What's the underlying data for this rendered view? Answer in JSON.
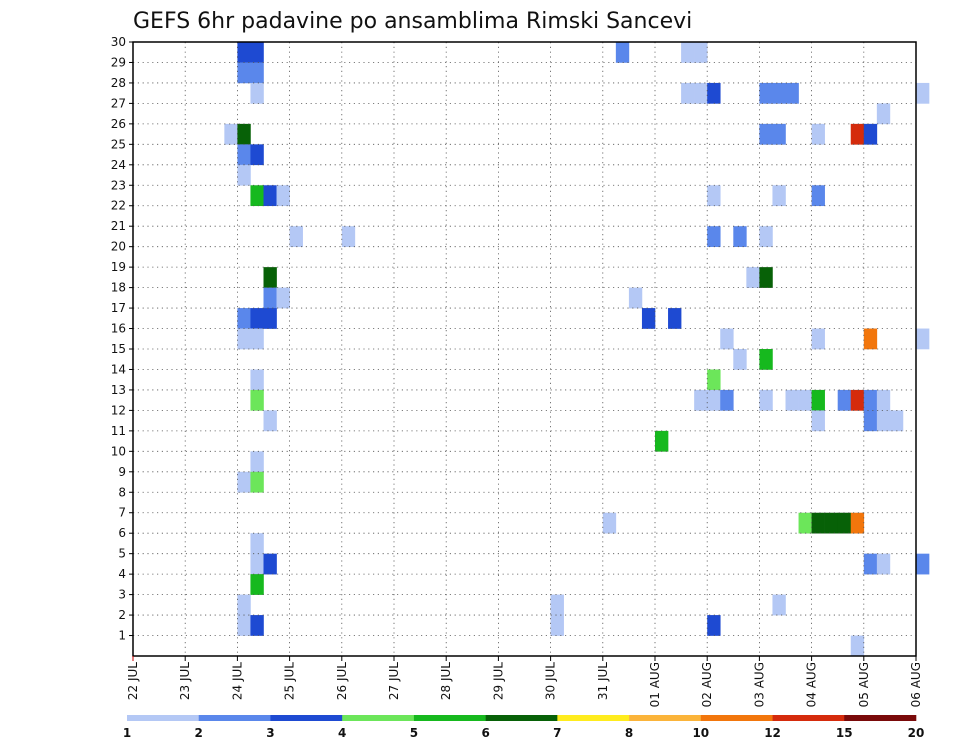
{
  "chart_data": {
    "type": "heatmap",
    "title": "GEFS 6hr padavine po ansamblima Rimski Sancevi",
    "xlabel": "",
    "ylabel": "",
    "x_ticks": [
      "22 JUL",
      "23 JUL",
      "24 JUL",
      "25 JUL",
      "26 JUL",
      "27 JUL",
      "28 JUL",
      "29 JUL",
      "30 JUL",
      "31 JUL",
      "01 AUG",
      "02 AUG",
      "03 AUG",
      "04 AUG",
      "05 AUG",
      "06 AUG"
    ],
    "y_ticks": [
      1,
      2,
      3,
      4,
      5,
      6,
      7,
      8,
      9,
      10,
      11,
      12,
      13,
      14,
      15,
      16,
      17,
      18,
      19,
      20,
      21,
      22,
      23,
      24,
      25,
      26,
      27,
      28,
      29,
      30
    ],
    "xlim_steps": [
      0,
      60
    ],
    "ylim": [
      0,
      30
    ],
    "grid": true,
    "step_hours": 6,
    "colorbar": {
      "levels": [
        1,
        2,
        3,
        4,
        5,
        6,
        7,
        8,
        10,
        12,
        15,
        20
      ],
      "labels": [
        "1",
        "2",
        "3",
        "4",
        "5",
        "6",
        "7",
        "8",
        "10",
        "12",
        "15",
        "20"
      ],
      "colors": [
        "#b4c8f5",
        "#5a87eb",
        "#1e4ad2",
        "#6ce65a",
        "#16b91e",
        "#076107",
        "#ffec1e",
        "#fbb43a",
        "#f2760c",
        "#d52b0c",
        "#7a0a0a"
      ]
    },
    "cells": [
      {
        "member": 30,
        "step": 8,
        "value": 3
      },
      {
        "member": 30,
        "step": 9,
        "value": 3
      },
      {
        "member": 30,
        "step": 37,
        "value": 2
      },
      {
        "member": 30,
        "step": 42,
        "value": 1
      },
      {
        "member": 30,
        "step": 43,
        "value": 1
      },
      {
        "member": 29,
        "step": 8,
        "value": 2
      },
      {
        "member": 29,
        "step": 9,
        "value": 2
      },
      {
        "member": 28,
        "step": 9,
        "value": 1
      },
      {
        "member": 28,
        "step": 42,
        "value": 1
      },
      {
        "member": 28,
        "step": 43,
        "value": 1
      },
      {
        "member": 28,
        "step": 44,
        "value": 3
      },
      {
        "member": 28,
        "step": 48,
        "value": 2
      },
      {
        "member": 28,
        "step": 49,
        "value": 2
      },
      {
        "member": 28,
        "step": 50,
        "value": 2
      },
      {
        "member": 28,
        "step": 60,
        "value": 1
      },
      {
        "member": 27,
        "step": 57,
        "value": 1
      },
      {
        "member": 26,
        "step": 7,
        "value": 1
      },
      {
        "member": 26,
        "step": 8,
        "value": 6
      },
      {
        "member": 26,
        "step": 48,
        "value": 2
      },
      {
        "member": 26,
        "step": 49,
        "value": 2
      },
      {
        "member": 26,
        "step": 52,
        "value": 1
      },
      {
        "member": 26,
        "step": 55,
        "value": 12
      },
      {
        "member": 26,
        "step": 56,
        "value": 3
      },
      {
        "member": 25,
        "step": 8,
        "value": 2
      },
      {
        "member": 25,
        "step": 9,
        "value": 3
      },
      {
        "member": 24,
        "step": 8,
        "value": 1
      },
      {
        "member": 23,
        "step": 9,
        "value": 5
      },
      {
        "member": 23,
        "step": 10,
        "value": 3
      },
      {
        "member": 23,
        "step": 11,
        "value": 1
      },
      {
        "member": 23,
        "step": 44,
        "value": 1
      },
      {
        "member": 23,
        "step": 49,
        "value": 1
      },
      {
        "member": 23,
        "step": 52,
        "value": 2
      },
      {
        "member": 21,
        "step": 12,
        "value": 1
      },
      {
        "member": 21,
        "step": 16,
        "value": 1
      },
      {
        "member": 21,
        "step": 44,
        "value": 2
      },
      {
        "member": 21,
        "step": 46,
        "value": 2
      },
      {
        "member": 21,
        "step": 48,
        "value": 1
      },
      {
        "member": 19,
        "step": 10,
        "value": 6
      },
      {
        "member": 19,
        "step": 47,
        "value": 1
      },
      {
        "member": 19,
        "step": 48,
        "value": 6
      },
      {
        "member": 18,
        "step": 10,
        "value": 2
      },
      {
        "member": 18,
        "step": 11,
        "value": 1
      },
      {
        "member": 18,
        "step": 38,
        "value": 1
      },
      {
        "member": 17,
        "step": 8,
        "value": 2
      },
      {
        "member": 17,
        "step": 9,
        "value": 3
      },
      {
        "member": 17,
        "step": 10,
        "value": 3
      },
      {
        "member": 17,
        "step": 39,
        "value": 3
      },
      {
        "member": 17,
        "step": 41,
        "value": 3
      },
      {
        "member": 16,
        "step": 8,
        "value": 1
      },
      {
        "member": 16,
        "step": 9,
        "value": 1
      },
      {
        "member": 16,
        "step": 45,
        "value": 1
      },
      {
        "member": 16,
        "step": 52,
        "value": 1
      },
      {
        "member": 16,
        "step": 56,
        "value": 10
      },
      {
        "member": 16,
        "step": 60,
        "value": 1
      },
      {
        "member": 15,
        "step": 46,
        "value": 1
      },
      {
        "member": 15,
        "step": 48,
        "value": 5
      },
      {
        "member": 14,
        "step": 9,
        "value": 1
      },
      {
        "member": 14,
        "step": 44,
        "value": 4
      },
      {
        "member": 13,
        "step": 9,
        "value": 4
      },
      {
        "member": 13,
        "step": 43,
        "value": 1
      },
      {
        "member": 13,
        "step": 44,
        "value": 1
      },
      {
        "member": 13,
        "step": 45,
        "value": 2
      },
      {
        "member": 13,
        "step": 48,
        "value": 1
      },
      {
        "member": 13,
        "step": 50,
        "value": 1
      },
      {
        "member": 13,
        "step": 51,
        "value": 1
      },
      {
        "member": 13,
        "step": 52,
        "value": 5
      },
      {
        "member": 13,
        "step": 54,
        "value": 2
      },
      {
        "member": 13,
        "step": 55,
        "value": 12
      },
      {
        "member": 13,
        "step": 56,
        "value": 2
      },
      {
        "member": 13,
        "step": 57,
        "value": 1
      },
      {
        "member": 12,
        "step": 10,
        "value": 1
      },
      {
        "member": 12,
        "step": 52,
        "value": 1
      },
      {
        "member": 12,
        "step": 56,
        "value": 2
      },
      {
        "member": 12,
        "step": 57,
        "value": 1
      },
      {
        "member": 12,
        "step": 58,
        "value": 1
      },
      {
        "member": 11,
        "step": 40,
        "value": 5
      },
      {
        "member": 10,
        "step": 9,
        "value": 1
      },
      {
        "member": 9,
        "step": 8,
        "value": 1
      },
      {
        "member": 9,
        "step": 9,
        "value": 4
      },
      {
        "member": 7,
        "step": 36,
        "value": 1
      },
      {
        "member": 7,
        "step": 51,
        "value": 4
      },
      {
        "member": 7,
        "step": 52,
        "value": 6
      },
      {
        "member": 7,
        "step": 53,
        "value": 6
      },
      {
        "member": 7,
        "step": 54,
        "value": 6
      },
      {
        "member": 7,
        "step": 55,
        "value": 10
      },
      {
        "member": 6,
        "step": 9,
        "value": 1
      },
      {
        "member": 5,
        "step": 9,
        "value": 1
      },
      {
        "member": 5,
        "step": 10,
        "value": 3
      },
      {
        "member": 5,
        "step": 56,
        "value": 2
      },
      {
        "member": 5,
        "step": 57,
        "value": 1
      },
      {
        "member": 5,
        "step": 60,
        "value": 2
      },
      {
        "member": 4,
        "step": 9,
        "value": 5
      },
      {
        "member": 3,
        "step": 8,
        "value": 1
      },
      {
        "member": 3,
        "step": 32,
        "value": 1
      },
      {
        "member": 3,
        "step": 49,
        "value": 1
      },
      {
        "member": 2,
        "step": 8,
        "value": 1
      },
      {
        "member": 2,
        "step": 9,
        "value": 3
      },
      {
        "member": 2,
        "step": 32,
        "value": 1
      },
      {
        "member": 2,
        "step": 44,
        "value": 3
      },
      {
        "member": 1,
        "step": 55,
        "value": 1
      }
    ]
  }
}
